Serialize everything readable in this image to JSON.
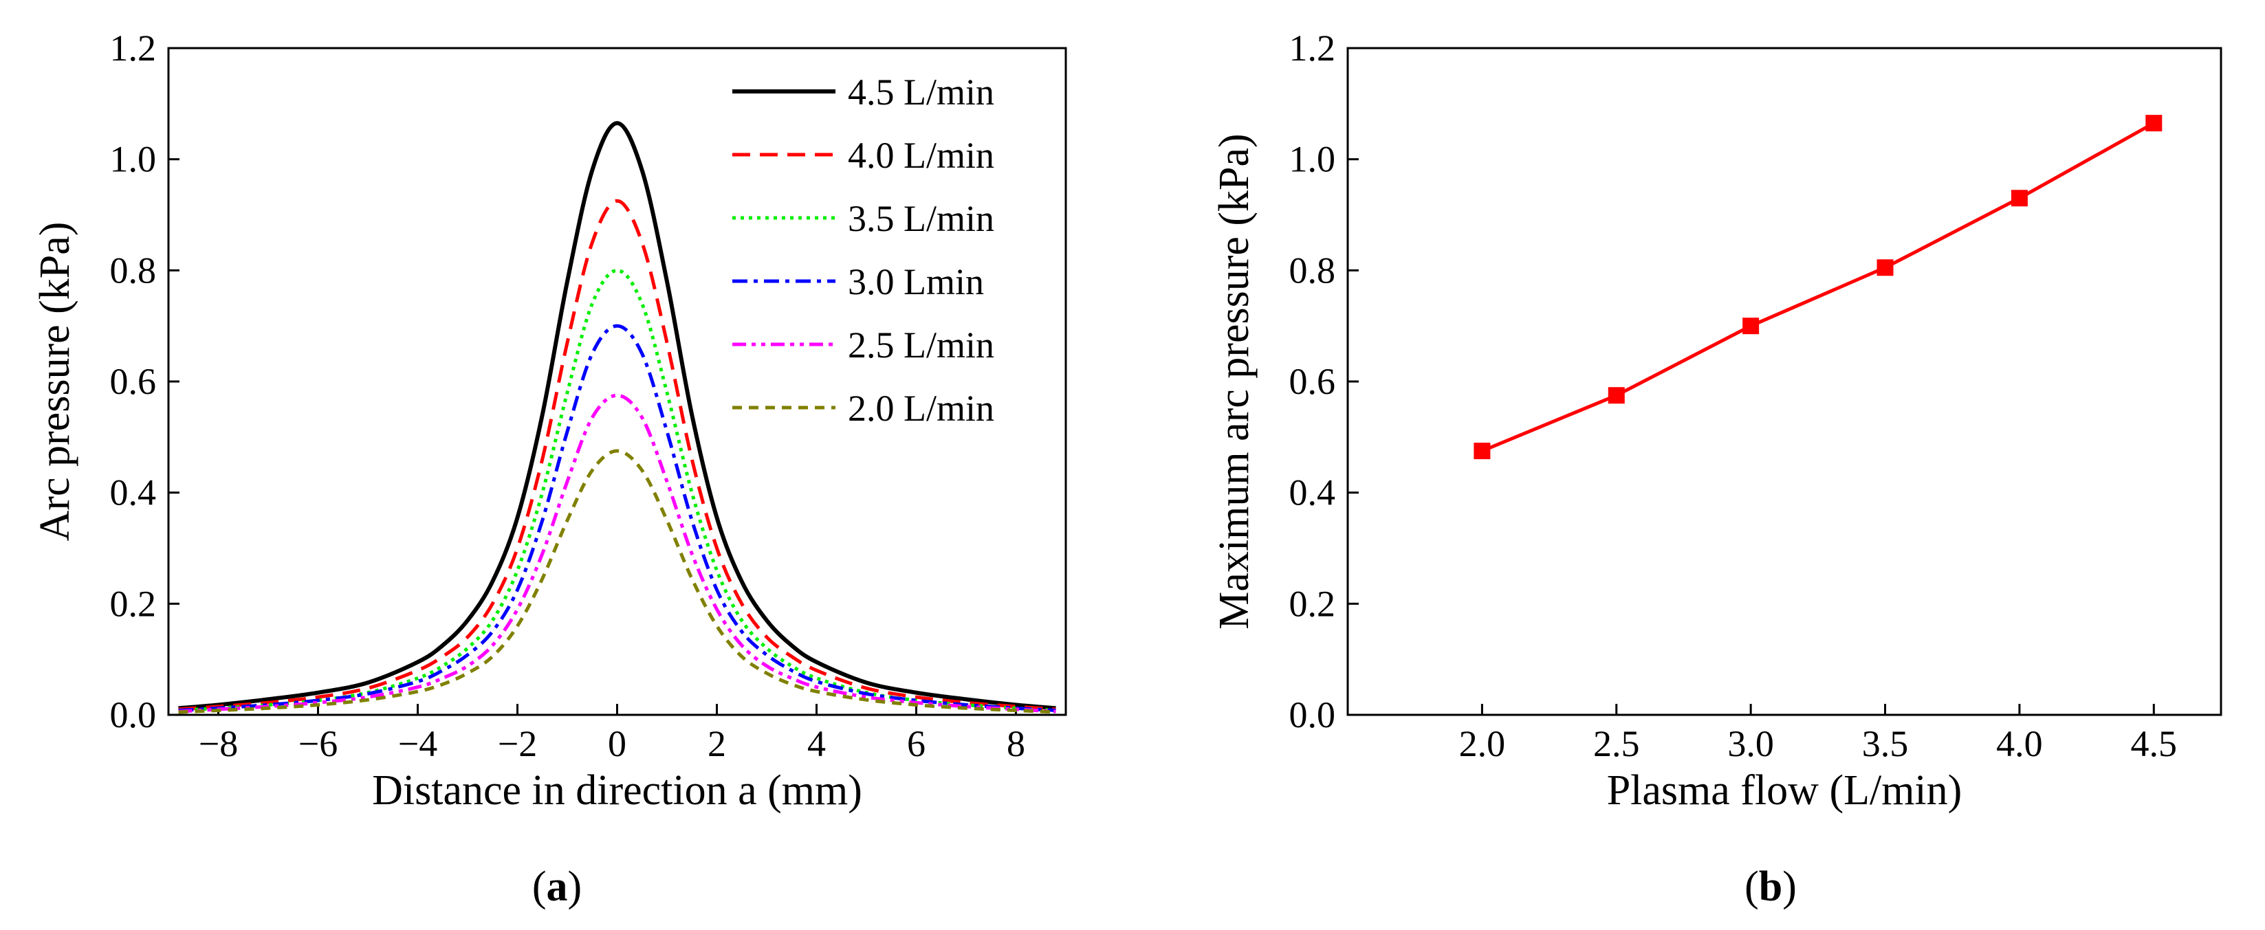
{
  "chart_data": [
    {
      "panel": "(a)",
      "caption_letter": "a",
      "type": "line",
      "xlabel": "Distance in direction a (mm)",
      "ylabel": "Arc pressure (kPa)",
      "xlim": [
        -9,
        9
      ],
      "ylim": [
        0.0,
        1.2
      ],
      "xticks": [
        -8,
        -6,
        -4,
        -2,
        0,
        2,
        4,
        6,
        8
      ],
      "xtick_labels": [
        "−8",
        "−6",
        "−4",
        "−2",
        "0",
        "2",
        "4",
        "6",
        "8"
      ],
      "yticks": [
        0.0,
        0.2,
        0.4,
        0.6,
        0.8,
        1.0,
        1.2
      ],
      "ytick_labels": [
        "0.0",
        "0.2",
        "0.4",
        "0.6",
        "0.8",
        "1.0",
        "1.2"
      ],
      "legend_position": "top-right",
      "grid": false,
      "x": [
        -8.8,
        -8,
        -7,
        -6,
        -5,
        -4,
        -3.5,
        -3,
        -2.5,
        -2,
        -1.5,
        -1,
        -0.5,
        0,
        0.5,
        1,
        1.5,
        2,
        2.5,
        3,
        3.5,
        4,
        5,
        6,
        7,
        8,
        8.8
      ],
      "series": [
        {
          "name": "4.5 L/min",
          "color": "#000000",
          "dash": "solid",
          "values": [
            0.012,
            0.018,
            0.028,
            0.04,
            0.058,
            0.095,
            0.125,
            0.17,
            0.24,
            0.355,
            0.54,
            0.78,
            0.98,
            1.065,
            0.98,
            0.78,
            0.54,
            0.355,
            0.24,
            0.17,
            0.125,
            0.095,
            0.058,
            0.04,
            0.028,
            0.018,
            0.012
          ]
        },
        {
          "name": "4.0 L/min",
          "color": "#ff0000",
          "dash": "long-dash",
          "values": [
            0.01,
            0.015,
            0.022,
            0.032,
            0.048,
            0.08,
            0.105,
            0.14,
            0.2,
            0.3,
            0.46,
            0.67,
            0.85,
            0.925,
            0.85,
            0.67,
            0.46,
            0.3,
            0.2,
            0.14,
            0.105,
            0.08,
            0.048,
            0.032,
            0.022,
            0.015,
            0.01
          ]
        },
        {
          "name": "3.5 L/min",
          "color": "#00ee00",
          "dash": "dot",
          "values": [
            0.008,
            0.012,
            0.018,
            0.026,
            0.04,
            0.066,
            0.088,
            0.12,
            0.17,
            0.26,
            0.4,
            0.58,
            0.74,
            0.8,
            0.74,
            0.58,
            0.4,
            0.26,
            0.17,
            0.12,
            0.088,
            0.066,
            0.04,
            0.026,
            0.018,
            0.012,
            0.008
          ]
        },
        {
          "name": "3.0 Lmin",
          "color": "#0000ff",
          "dash": "dash-dot",
          "values": [
            0.008,
            0.012,
            0.018,
            0.026,
            0.038,
            0.06,
            0.08,
            0.108,
            0.15,
            0.225,
            0.35,
            0.51,
            0.65,
            0.7,
            0.65,
            0.51,
            0.35,
            0.225,
            0.15,
            0.108,
            0.08,
            0.06,
            0.038,
            0.026,
            0.018,
            0.012,
            0.008
          ]
        },
        {
          "name": "2.5 L/min",
          "color": "#ff00ff",
          "dash": "dash-dot-dot",
          "values": [
            0.006,
            0.01,
            0.015,
            0.022,
            0.032,
            0.05,
            0.066,
            0.088,
            0.125,
            0.19,
            0.29,
            0.42,
            0.535,
            0.575,
            0.535,
            0.42,
            0.29,
            0.19,
            0.125,
            0.088,
            0.066,
            0.05,
            0.032,
            0.022,
            0.015,
            0.01,
            0.006
          ]
        },
        {
          "name": "2.0 L/min",
          "color": "#808000",
          "dash": "short-dash",
          "values": [
            0.005,
            0.008,
            0.012,
            0.018,
            0.027,
            0.042,
            0.055,
            0.075,
            0.105,
            0.16,
            0.245,
            0.35,
            0.44,
            0.475,
            0.44,
            0.35,
            0.245,
            0.16,
            0.105,
            0.075,
            0.055,
            0.042,
            0.027,
            0.018,
            0.012,
            0.008,
            0.005
          ]
        }
      ]
    },
    {
      "panel": "(b)",
      "caption_letter": "b",
      "type": "line",
      "xlabel": "Plasma flow (L/min)",
      "ylabel": "Maximum arc pressure (kPa)",
      "xlim": [
        1.5,
        4.75
      ],
      "ylim": [
        0.0,
        1.2
      ],
      "xticks": [
        2.0,
        2.5,
        3.0,
        3.5,
        4.0,
        4.5
      ],
      "xtick_labels": [
        "2.0",
        "2.5",
        "3.0",
        "3.5",
        "4.0",
        "4.5"
      ],
      "yticks": [
        0.0,
        0.2,
        0.4,
        0.6,
        0.8,
        1.0,
        1.2
      ],
      "ytick_labels": [
        "0.0",
        "0.2",
        "0.4",
        "0.6",
        "0.8",
        "1.0",
        "1.2"
      ],
      "grid": false,
      "series": [
        {
          "color": "#ff0000",
          "marker": "square",
          "x": [
            2.0,
            2.5,
            3.0,
            3.5,
            4.0,
            4.5
          ],
          "values": [
            0.475,
            0.575,
            0.7,
            0.805,
            0.93,
            1.065
          ]
        }
      ]
    }
  ]
}
